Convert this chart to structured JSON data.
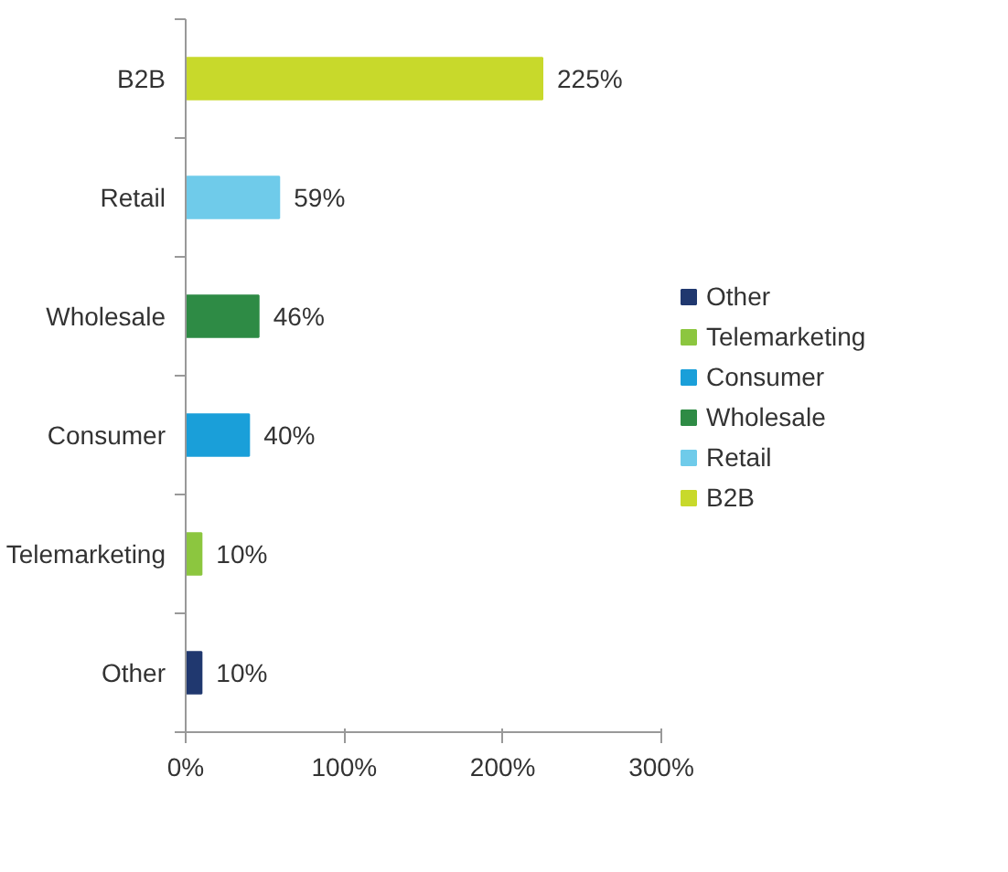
{
  "chart_data": {
    "type": "bar",
    "orientation": "horizontal",
    "categories": [
      "B2B",
      "Retail",
      "Wholesale",
      "Consumer",
      "Telemarketing",
      "Other"
    ],
    "series": [
      {
        "name": "B2B",
        "color": "#c8d92b",
        "values": [
          225,
          null,
          null,
          null,
          null,
          null
        ],
        "value_labels": [
          "225%",
          null,
          null,
          null,
          null,
          null
        ]
      },
      {
        "name": "Retail",
        "color": "#6fcbea",
        "values": [
          null,
          59,
          null,
          null,
          null,
          null
        ],
        "value_labels": [
          null,
          "59%",
          null,
          null,
          null,
          null
        ]
      },
      {
        "name": "Wholesale",
        "color": "#2e8b45",
        "values": [
          null,
          null,
          46,
          null,
          null,
          null
        ],
        "value_labels": [
          null,
          null,
          "46%",
          null,
          null,
          null
        ]
      },
      {
        "name": "Consumer",
        "color": "#1a9fd9",
        "values": [
          null,
          null,
          null,
          40,
          null,
          null
        ],
        "value_labels": [
          null,
          null,
          null,
          "40%",
          null,
          null
        ]
      },
      {
        "name": "Telemarketing",
        "color": "#8cc63f",
        "values": [
          null,
          null,
          null,
          null,
          10,
          null
        ],
        "value_labels": [
          null,
          null,
          null,
          null,
          "10%",
          null
        ]
      },
      {
        "name": "Other",
        "color": "#20386f",
        "values": [
          null,
          null,
          null,
          null,
          null,
          10
        ],
        "value_labels": [
          null,
          null,
          null,
          null,
          null,
          "10%"
        ]
      }
    ],
    "xlim": [
      0,
      300
    ],
    "xticks": [
      {
        "value": 0,
        "label": "0%"
      },
      {
        "value": 100,
        "label": "100%"
      },
      {
        "value": 200,
        "label": "200%"
      },
      {
        "value": 300,
        "label": "300%"
      }
    ],
    "legend": "right"
  }
}
